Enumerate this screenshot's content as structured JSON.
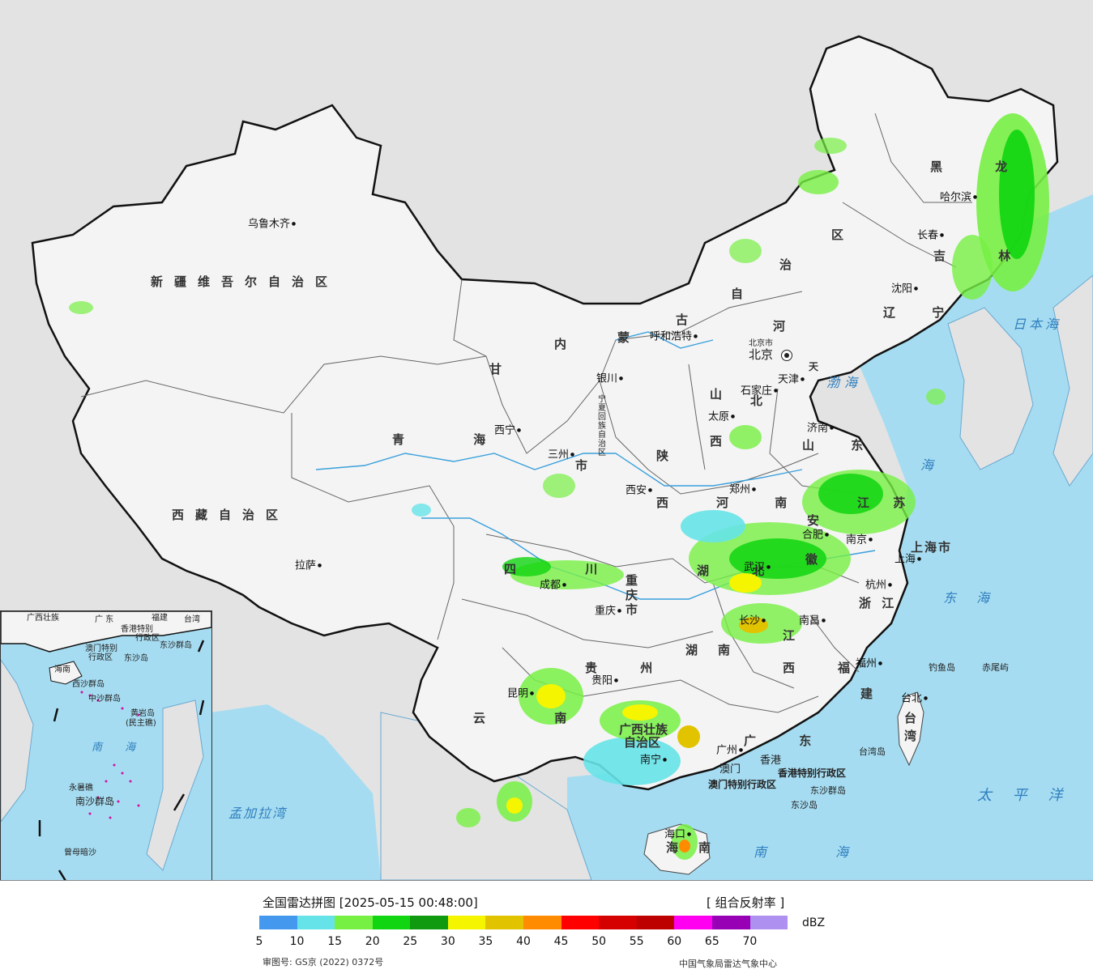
{
  "map": {
    "sea_color": "#a6dcf1",
    "land_color": "#f4f4f4",
    "outside_color": "#e3e3e3",
    "provinces": [
      {
        "id": "xinjiang",
        "text": "新疆维吾尔自治区"
      },
      {
        "id": "xizang",
        "text": "西藏自治区"
      },
      {
        "id": "qinghai",
        "text": "青 海"
      },
      {
        "id": "gansu",
        "text": "甘"
      },
      {
        "id": "neimenggu1",
        "text": "内"
      },
      {
        "id": "neimenggu2",
        "text": "蒙"
      },
      {
        "id": "neimenggu3",
        "text": "古"
      },
      {
        "id": "neimenggu4",
        "text": "自"
      },
      {
        "id": "neimenggu5",
        "text": "治"
      },
      {
        "id": "neimenggu6",
        "text": "区"
      },
      {
        "id": "heilongjiang",
        "text": "黑 龙"
      },
      {
        "id": "jilin",
        "text": "吉 林"
      },
      {
        "id": "liaoning",
        "text": "辽 宁"
      },
      {
        "id": "hebei1",
        "text": "河"
      },
      {
        "id": "hebei2",
        "text": "北"
      },
      {
        "id": "shanxi1",
        "text": "山"
      },
      {
        "id": "shanxi2",
        "text": "西"
      },
      {
        "id": "shaanxi1",
        "text": "陕"
      },
      {
        "id": "shaanxi2",
        "text": "西"
      },
      {
        "id": "shandong",
        "text": "山 东"
      },
      {
        "id": "henan",
        "text": "河 南"
      },
      {
        "id": "jiangsu",
        "text": "江 苏"
      },
      {
        "id": "anhui1",
        "text": "安"
      },
      {
        "id": "anhui2",
        "text": "徽"
      },
      {
        "id": "hubei",
        "text": "湖 北"
      },
      {
        "id": "sichuan",
        "text": "四 川"
      },
      {
        "id": "chongqing",
        "text": "重 庆 市"
      },
      {
        "id": "zhejiang",
        "text": "浙 江"
      },
      {
        "id": "jiangxi1",
        "text": "江"
      },
      {
        "id": "jiangxi2",
        "text": "西"
      },
      {
        "id": "hunan1",
        "text": "湖"
      },
      {
        "id": "hunan2",
        "text": "南"
      },
      {
        "id": "guizhou",
        "text": "贵 州"
      },
      {
        "id": "yunnan",
        "text": "云 南"
      },
      {
        "id": "guangxi1",
        "text": "广西壮族"
      },
      {
        "id": "guangxi2",
        "text": "自治区"
      },
      {
        "id": "guangdong",
        "text": "广 东"
      },
      {
        "id": "fujian1",
        "text": "福"
      },
      {
        "id": "fujian2",
        "text": "建"
      },
      {
        "id": "taiwan1",
        "text": "台"
      },
      {
        "id": "taiwan2",
        "text": "湾"
      },
      {
        "id": "hainan1",
        "text": "海"
      },
      {
        "id": "hainan2",
        "text": "南"
      },
      {
        "id": "shanghai",
        "text": "上海市"
      },
      {
        "id": "tianjin",
        "text": "天"
      },
      {
        "id": "beijing_region",
        "text": "北京市"
      },
      {
        "id": "ningxia",
        "text": "宁夏回族自治区"
      },
      {
        "id": "shi",
        "text": "市"
      }
    ],
    "cities": [
      {
        "id": "urumqi",
        "text": "乌鲁木齐"
      },
      {
        "id": "lhasa",
        "text": "拉萨"
      },
      {
        "id": "xining",
        "text": "西宁"
      },
      {
        "id": "lanzhou",
        "text": "三州"
      },
      {
        "id": "yinchuan",
        "text": "银川"
      },
      {
        "id": "huhehaote",
        "text": "呼和浩特"
      },
      {
        "id": "harbin",
        "text": "哈尔滨"
      },
      {
        "id": "changchun",
        "text": "长春"
      },
      {
        "id": "shenyang",
        "text": "沈阳"
      },
      {
        "id": "beijing",
        "text": "北京"
      },
      {
        "id": "tianjin_c",
        "text": "天津"
      },
      {
        "id": "shijiazhuang",
        "text": "石家庄"
      },
      {
        "id": "taiyuan",
        "text": "太原"
      },
      {
        "id": "jinan",
        "text": "济南"
      },
      {
        "id": "zhengzhou",
        "text": "郑州"
      },
      {
        "id": "xian",
        "text": "西安"
      },
      {
        "id": "chengdu",
        "text": "成都"
      },
      {
        "id": "chongqing_c",
        "text": "重庆"
      },
      {
        "id": "wuhan",
        "text": "武汉"
      },
      {
        "id": "hefei",
        "text": "合肥"
      },
      {
        "id": "nanjing",
        "text": "南京"
      },
      {
        "id": "shanghai_c",
        "text": "上海"
      },
      {
        "id": "hangzhou",
        "text": "杭州"
      },
      {
        "id": "nanchang",
        "text": "南昌"
      },
      {
        "id": "changsha",
        "text": "长沙"
      },
      {
        "id": "guiyang",
        "text": "贵阳"
      },
      {
        "id": "kunming",
        "text": "昆明"
      },
      {
        "id": "nanning",
        "text": "南宁"
      },
      {
        "id": "guangzhou",
        "text": "广州"
      },
      {
        "id": "fuzhou",
        "text": "福州"
      },
      {
        "id": "taibei",
        "text": "台北"
      },
      {
        "id": "haikou",
        "text": "海口"
      },
      {
        "id": "xianggang",
        "text": "香港"
      },
      {
        "id": "aomen",
        "text": "澳门"
      }
    ],
    "sar": {
      "hk": "香港特别行政区",
      "macau": "澳门特别行政区"
    },
    "seas": {
      "japan": "日本海",
      "bohai": "渤海",
      "yellow": "海",
      "east": "东 海",
      "pacific": "太 平 洋",
      "south": "南 海",
      "bengal": "孟加拉湾"
    },
    "islands": {
      "diaoyu": "钓鱼岛",
      "chiwei": "赤尾屿",
      "dongsha": "东沙群岛",
      "dongsha2": "东沙岛",
      "taiwan_island": "台湾岛"
    },
    "inset": {
      "labels": {
        "guangxi": "广西壮族",
        "guangdong": "广 东",
        "fujian": "福建",
        "taiwan": "台湾",
        "hk": "香港特别",
        "hk2": "行政区",
        "macau": "澳门特别",
        "macau2": "行政区",
        "dongsha": "东沙群岛",
        "dongsha2": "东沙岛",
        "hainan": "海南",
        "xisha": "西沙群岛",
        "zhongsha": "中沙群岛",
        "huangyan": "黄岩岛",
        "minzhu": "(民主礁)",
        "south_sea": "南 海",
        "yongshu": "永暑礁",
        "nansha": "南沙群岛",
        "zengmu": "曾母暗沙"
      }
    }
  },
  "legend": {
    "title": "全国雷达拼图 [2025-05-15 00:48:00]",
    "product": "[ 组合反射率 ]",
    "unit": "dBZ",
    "colors": [
      "#4499ee",
      "#66e3e8",
      "#77f044",
      "#10d510",
      "#0f9a0f",
      "#f5f500",
      "#e2c300",
      "#ff8c00",
      "#ff0000",
      "#d50000",
      "#bd0000",
      "#ff00f0",
      "#9700b4",
      "#ae90f0"
    ],
    "ticks": [
      "5",
      "10",
      "15",
      "20",
      "25",
      "30",
      "35",
      "40",
      "45",
      "50",
      "55",
      "60",
      "65",
      "70"
    ],
    "approval": "审图号: GS京 (2022) 0372号",
    "source": "中国气象局雷达气象中心"
  }
}
